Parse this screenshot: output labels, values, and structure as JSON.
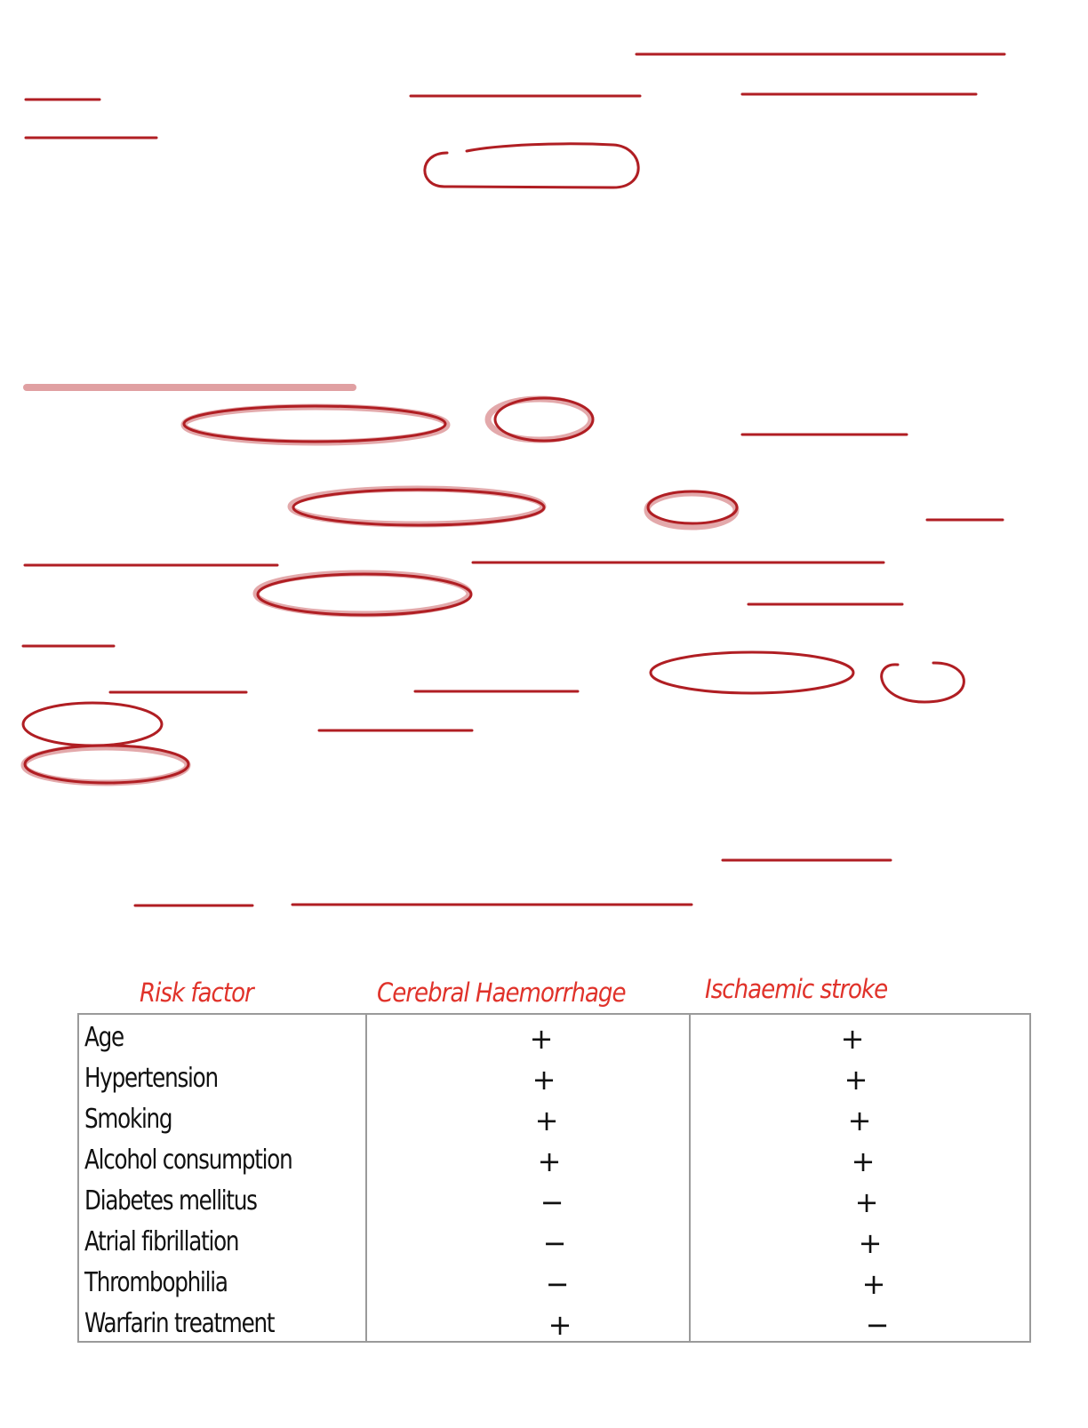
{
  "annotation_color": "#b01e23",
  "highlight_color": "#e0a0a2",
  "table": {
    "header_color": "#e0322a",
    "headers": {
      "risk_factor": "Risk factor",
      "cerebral_haemorrhage": "Cerebral Haemorrhage",
      "ischaemic_stroke": "Ischaemic stroke"
    },
    "rows": [
      {
        "factor": "Age",
        "haemorrhage": "+",
        "ischaemic": "+"
      },
      {
        "factor": "Hypertension",
        "haemorrhage": "+",
        "ischaemic": "+"
      },
      {
        "factor": "Smoking",
        "haemorrhage": "+",
        "ischaemic": "+"
      },
      {
        "factor": "Alcohol consumption",
        "haemorrhage": "+",
        "ischaemic": "+"
      },
      {
        "factor": "Diabetes mellitus",
        "haemorrhage": "−",
        "ischaemic": "+"
      },
      {
        "factor": "Atrial fibrillation",
        "haemorrhage": "−",
        "ischaemic": "+"
      },
      {
        "factor": "Thrombophilia",
        "haemorrhage": "−",
        "ischaemic": "+"
      },
      {
        "factor": "Warfarin treatment",
        "haemorrhage": "+",
        "ischaemic": "−"
      }
    ]
  }
}
